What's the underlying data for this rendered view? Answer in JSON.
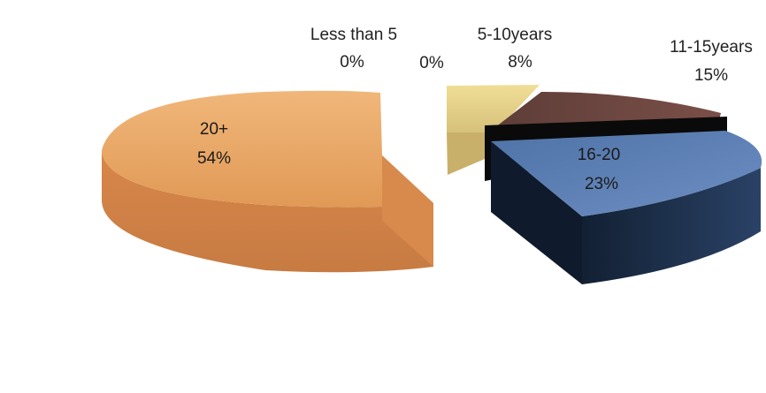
{
  "chart_data": {
    "type": "pie",
    "style": "3d-exploded",
    "title": "",
    "categories": [
      "Less than 5",
      "5-10years",
      "11-15years",
      "16-20",
      "20+"
    ],
    "values": [
      0,
      8,
      15,
      23,
      54
    ],
    "labels": [
      "0%",
      "8%",
      "15%",
      "23%",
      "54%"
    ],
    "extra_labels": [
      "0%"
    ],
    "colors": [
      "#d9c98a",
      "#e7d58c",
      "#6e4a43",
      "#4a6fa5",
      "#e09a5a"
    ],
    "legend": "none"
  }
}
